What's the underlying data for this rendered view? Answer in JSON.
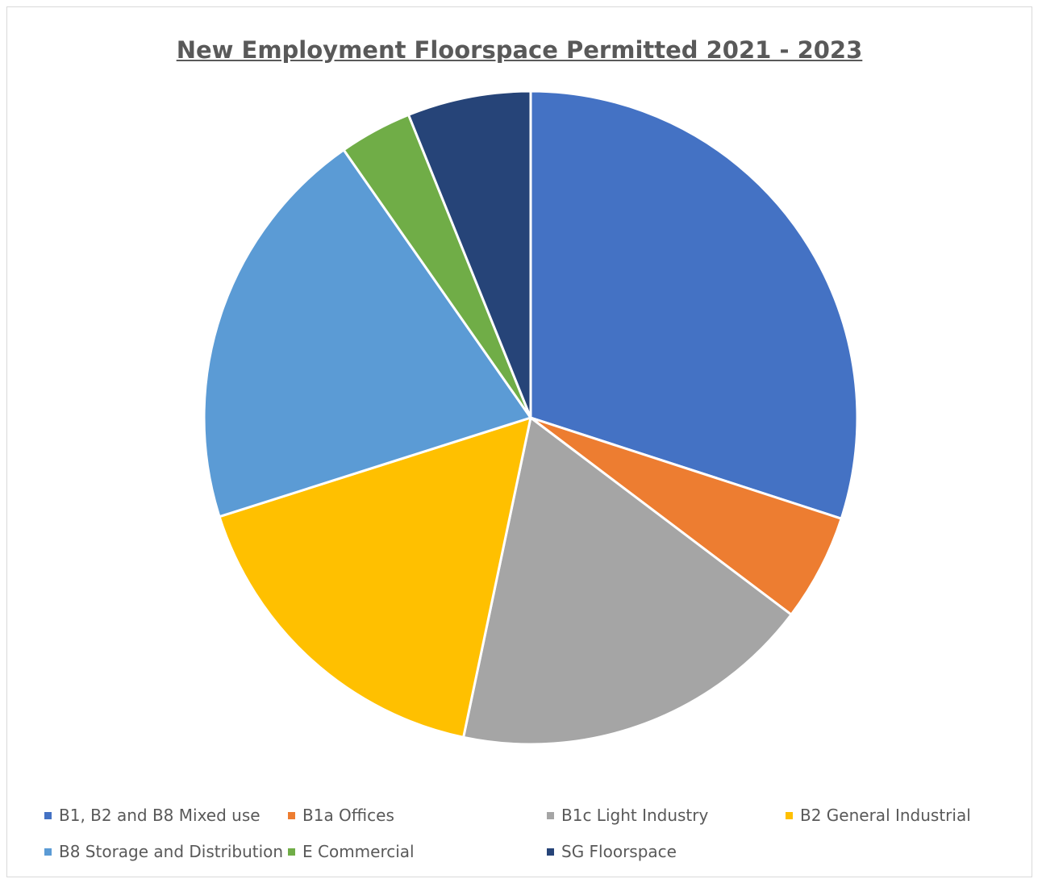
{
  "chart_data": {
    "type": "pie",
    "title": "New Employment Floorspace Permitted 2021 - 2023",
    "start_angle": "12 o'clock",
    "direction": "clockwise",
    "legend_position": "bottom",
    "slices": [
      {
        "label": "B1, B2 and B8 Mixed use",
        "value": 30.0,
        "color": "#4472C4"
      },
      {
        "label": "B1a Offices",
        "value": 5.3,
        "color": "#ED7D31"
      },
      {
        "label": "B1c Light Industry",
        "value": 18.0,
        "color": "#A5A5A5"
      },
      {
        "label": "B2 General Industrial",
        "value": 16.8,
        "color": "#FFC000"
      },
      {
        "label": "B8 Storage and Distribution",
        "value": 20.2,
        "color": "#5B9BD5"
      },
      {
        "label": "E Commercial",
        "value": 3.6,
        "color": "#70AD47"
      },
      {
        "label": "SG Floorspace",
        "value": 6.1,
        "color": "#264478"
      }
    ]
  }
}
